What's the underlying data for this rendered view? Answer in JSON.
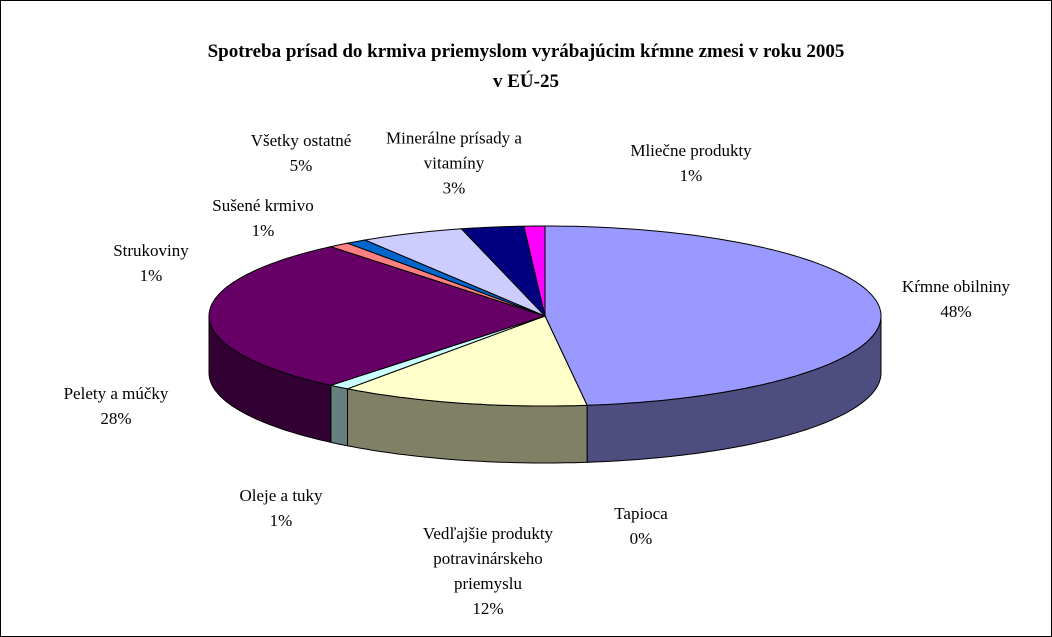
{
  "chart_data": {
    "type": "pie3d",
    "title": "Spotreba prísad do krmiva priemyslom vyrábajúcim kŕmne zmesi v roku 2005 v EÚ-25",
    "categories": [
      "Kŕmne obilniny",
      "Tapioca",
      "Vedľajšie produkty potravinárskeho priemyslu",
      "Oleje a tuky",
      "Pelety a múčky",
      "Strukoviny",
      "Sušené krmivo",
      "Všetky ostatné",
      "Minerálne prísady a vitamíny",
      "Mliečne produkty"
    ],
    "values": [
      48,
      0,
      12,
      1,
      28,
      1,
      1,
      5,
      3,
      1
    ],
    "value_labels": [
      "48%",
      "0%",
      "12%",
      "1%",
      "28%",
      "1%",
      "1%",
      "5%",
      "3%",
      "1%"
    ],
    "colors": [
      "#9999ff",
      "#660033",
      "#ffffcc",
      "#ccffff",
      "#660066",
      "#ff8080",
      "#0066cc",
      "#ccccff",
      "#000080",
      "#ff00ff"
    ]
  }
}
